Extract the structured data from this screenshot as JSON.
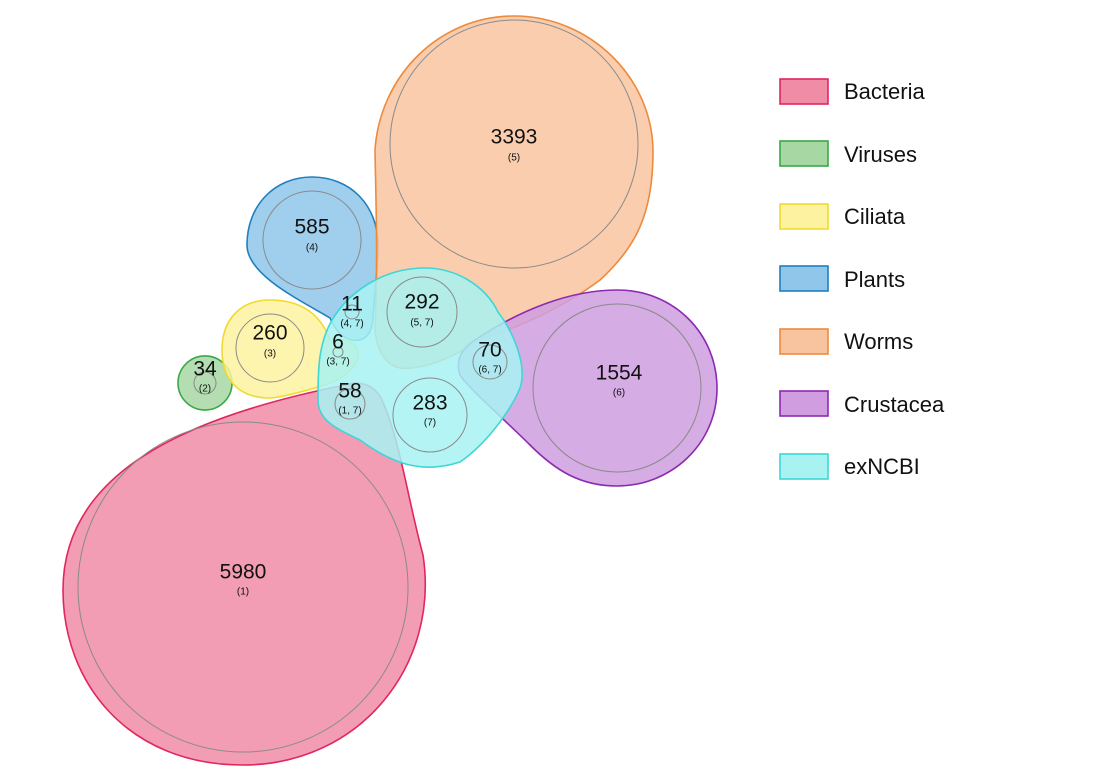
{
  "sets": [
    {
      "name": "Bacteria",
      "fill": "#f08ca6",
      "stroke": "#e2265e"
    },
    {
      "name": "Viruses",
      "fill": "#a7d8a3",
      "stroke": "#3aa84a"
    },
    {
      "name": "Ciliata",
      "fill": "#fdf2a0",
      "stroke": "#f1da2f"
    },
    {
      "name": "Plants",
      "fill": "#8fc6ea",
      "stroke": "#1f7fbf"
    },
    {
      "name": "Worms",
      "fill": "#f8c4a0",
      "stroke": "#ee8a3c"
    },
    {
      "name": "Crustacea",
      "fill": "#cf9de0",
      "stroke": "#8d2ab0"
    },
    {
      "name": "exNCBI",
      "fill": "#a8f2f2",
      "stroke": "#3fd6d6"
    }
  ],
  "regions": [
    {
      "key": "bacteria",
      "count": "5980",
      "ids": "(1)"
    },
    {
      "key": "viruses",
      "count": "34",
      "ids": "(2)"
    },
    {
      "key": "ciliata",
      "count": "260",
      "ids": "(3)"
    },
    {
      "key": "plants",
      "count": "585",
      "ids": "(4)"
    },
    {
      "key": "worms",
      "count": "3393",
      "ids": "(5)"
    },
    {
      "key": "crustacea",
      "count": "1554",
      "ids": "(6)"
    },
    {
      "key": "exncbi",
      "count": "283",
      "ids": "(7)"
    },
    {
      "key": "plants-exncbi",
      "count": "11",
      "ids": "(4, 7)"
    },
    {
      "key": "worms-exncbi",
      "count": "292",
      "ids": "(5, 7)"
    },
    {
      "key": "ciliata-exncbi",
      "count": "6",
      "ids": "(3, 7)"
    },
    {
      "key": "crustacea-exncbi",
      "count": "70",
      "ids": "(6, 7)"
    },
    {
      "key": "bacteria-exncbi",
      "count": "58",
      "ids": "(1, 7)"
    }
  ]
}
